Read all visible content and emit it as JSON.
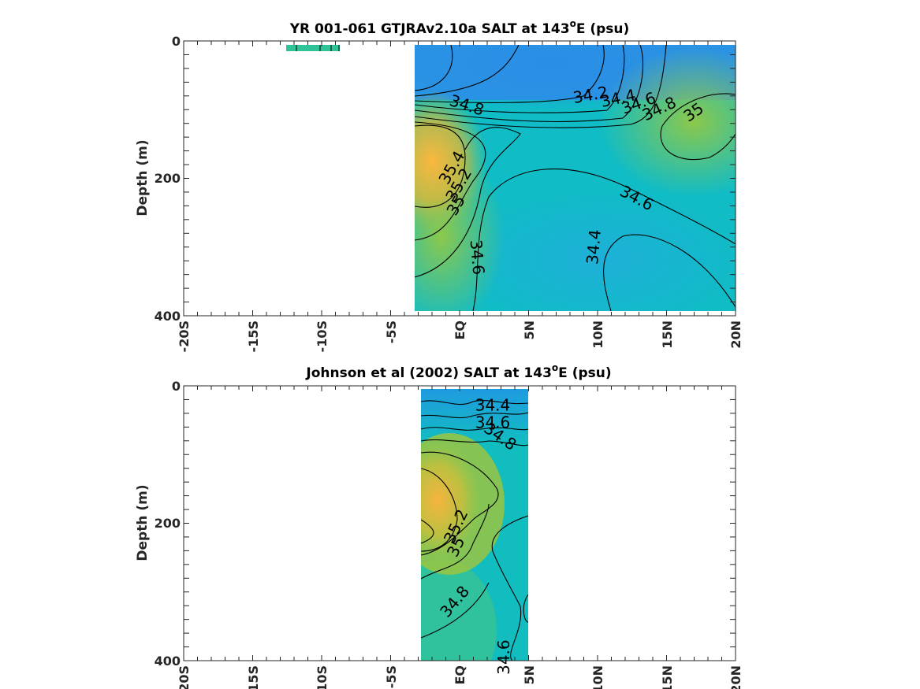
{
  "chart_data": [
    {
      "type": "contour",
      "title_main": "YR 001-061 GTJRAv2.10a SALT at 143",
      "title_sup": "o",
      "title_end": "E (psu)",
      "ylabel": "Depth (m)",
      "xlabel": "",
      "xlim": [
        -20,
        20
      ],
      "ylim": [
        0,
        400
      ],
      "y_reversed": true,
      "xticks": [
        "-20S",
        "-15S",
        "-10S",
        "-5S",
        "EQ",
        "5N",
        "10N",
        "15N",
        "20N"
      ],
      "yticks": [
        "0",
        "200",
        "400"
      ],
      "data_extent": {
        "lat": [
          -3.5,
          20
        ],
        "depth": [
          5,
          395
        ]
      },
      "contour_labels": [
        {
          "value": "34.2",
          "lat": 9.5,
          "depth": 80
        },
        {
          "value": "34.4",
          "lat": 11.5,
          "depth": 85
        },
        {
          "value": "34.6",
          "lat": 13.0,
          "depth": 92
        },
        {
          "value": "34.8",
          "lat": 0.5,
          "depth": 95
        },
        {
          "value": "34.8",
          "lat": 14.5,
          "depth": 100
        },
        {
          "value": "35",
          "lat": 17.0,
          "depth": 105
        },
        {
          "value": "35.4",
          "lat": -0.5,
          "depth": 185
        },
        {
          "value": "35.2",
          "lat": 0.0,
          "depth": 210
        },
        {
          "value": "35",
          "lat": -0.2,
          "depth": 240
        },
        {
          "value": "34.6",
          "lat": 12.8,
          "depth": 230
        },
        {
          "value": "34.6",
          "lat": 1.2,
          "depth": 315
        },
        {
          "value": "34.4",
          "lat": 9.8,
          "depth": 300
        }
      ]
    },
    {
      "type": "contour",
      "title_main": "Johnson et al (2002) SALT at 143",
      "title_sup": "o",
      "title_end": "E (psu)",
      "ylabel": "Depth (m)",
      "xlabel": "",
      "xlim": [
        -20,
        20
      ],
      "ylim": [
        0,
        400
      ],
      "y_reversed": true,
      "xticks": [
        "-20S",
        "-15S",
        "-10S",
        "-5S",
        "EQ",
        "5N",
        "10N",
        "15N",
        "20N"
      ],
      "yticks": [
        "0",
        "200",
        "400"
      ],
      "data_extent": {
        "lat": [
          -2.8,
          5
        ],
        "depth": [
          5,
          400
        ]
      },
      "contour_labels": [
        {
          "value": "34.4",
          "lat": 2.4,
          "depth": 30
        },
        {
          "value": "34.6",
          "lat": 2.4,
          "depth": 55
        },
        {
          "value": "34.8",
          "lat": 2.9,
          "depth": 75
        },
        {
          "value": "35.2",
          "lat": -0.2,
          "depth": 205
        },
        {
          "value": "35",
          "lat": -0.2,
          "depth": 235
        },
        {
          "value": "34.8",
          "lat": -0.3,
          "depth": 315
        },
        {
          "value": "34.6",
          "lat": 3.3,
          "depth": 395
        }
      ]
    }
  ]
}
